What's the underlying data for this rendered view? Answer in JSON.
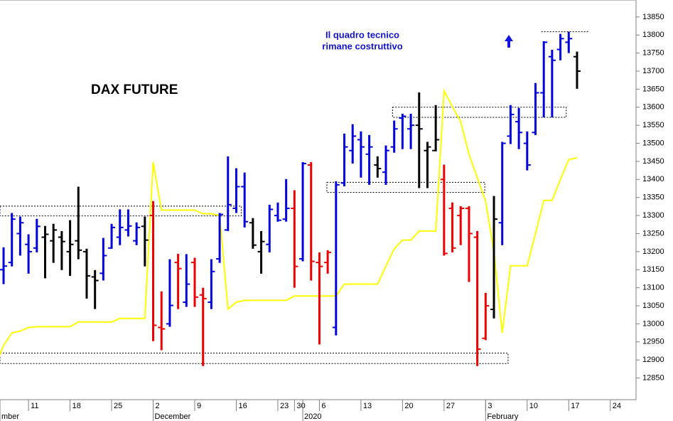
{
  "chart_data": {
    "type": "ohlc",
    "title": "DAX FUTURE",
    "annotations": [
      "Il quadro tecnico",
      "rimane costruttivo"
    ],
    "xlim": [
      1.57,
      78.1
    ],
    "ylim": [
      12790,
      13897
    ],
    "yticks": [
      12850,
      12900,
      12950,
      13000,
      13050,
      13100,
      13150,
      13200,
      13250,
      13300,
      13350,
      13400,
      13450,
      13500,
      13550,
      13600,
      13650,
      13700,
      13750,
      13800,
      13850
    ],
    "xticks": [
      {
        "value": 5,
        "label": "11"
      },
      {
        "value": 10,
        "label": "18"
      },
      {
        "value": 15,
        "label": "25"
      },
      {
        "value": 20,
        "label": "2"
      },
      {
        "value": 25,
        "label": "9"
      },
      {
        "value": 30,
        "label": "16"
      },
      {
        "value": 35,
        "label": "23"
      },
      {
        "value": 37,
        "label": "30"
      },
      {
        "value": 40,
        "label": "6"
      },
      {
        "value": 45,
        "label": "13"
      },
      {
        "value": 50,
        "label": "20"
      },
      {
        "value": 55,
        "label": "27"
      },
      {
        "value": 60,
        "label": "3"
      },
      {
        "value": 65,
        "label": "10"
      },
      {
        "value": 70,
        "label": "17"
      },
      {
        "value": 75,
        "label": "24"
      }
    ],
    "month_ticks": [
      {
        "value": 1.57,
        "label": "mber"
      },
      {
        "value": 20,
        "label": "December"
      },
      {
        "value": 38,
        "label": "2020"
      },
      {
        "value": 60,
        "label": "February"
      }
    ],
    "x": [
      1,
      2,
      3,
      4,
      5,
      6,
      7,
      8,
      9,
      10,
      11,
      12,
      13,
      14,
      15,
      16,
      17,
      18,
      19,
      20,
      21,
      22,
      23,
      24,
      25,
      26,
      27,
      28,
      29,
      30,
      31,
      32,
      33,
      34,
      35,
      36,
      37,
      38,
      39,
      40,
      41,
      42,
      43,
      44,
      45,
      46,
      47,
      48,
      49,
      50,
      51,
      52,
      53,
      54,
      55,
      56,
      57,
      58,
      59,
      60,
      61,
      62,
      63,
      64,
      65,
      66,
      67,
      68,
      69,
      70,
      71
    ],
    "open": [
      null,
      13150,
      13170,
      13250,
      13220,
      13210,
      13240,
      13230,
      13240,
      13200,
      13230,
      13200,
      13130,
      13140,
      13210,
      13240,
      13260,
      13230,
      13270,
      13300,
      12990,
      13000,
      13170,
      13060,
      13170,
      13080,
      13060,
      13180,
      13260,
      13320,
      13380,
      13280,
      13200,
      13220,
      13300,
      13290,
      13320,
      13180,
      13440,
      13170,
      13170,
      12990,
      13390,
      13480,
      13510,
      13470,
      13440,
      13420,
      13490,
      13570,
      13540,
      13550,
      13480,
      13480,
      13400,
      13320,
      13300,
      13320,
      13240,
      12960,
      13040,
      13280,
      13520,
      13560,
      13500,
      13530,
      13640,
      13740,
      13760,
      13780,
      13740
    ],
    "high": [
      null,
      13212,
      13307,
      13297,
      13248,
      13291,
      13271,
      13277,
      13257,
      13287,
      13380,
      13208,
      13149,
      13238,
      13277,
      13317,
      13317,
      13281,
      13297,
      13340,
      13090,
      13179,
      13194,
      13193,
      13183,
      13100,
      13179,
      13307,
      13464,
      13431,
      13419,
      13293,
      13257,
      13330,
      13336,
      13401,
      13370,
      13448,
      13448,
      13198,
      13204,
      13395,
      13527,
      13553,
      13533,
      13523,
      13464,
      13494,
      13563,
      13582,
      13582,
      13641,
      13504,
      13606,
      13441,
      13336,
      13326,
      13326,
      13257,
      13086,
      13354,
      13504,
      13606,
      13598,
      13533,
      13667,
      13783,
      13759,
      13803,
      13809,
      13754
    ],
    "low": [
      null,
      13110,
      13159,
      13189,
      13139,
      13198,
      13126,
      13169,
      13149,
      13133,
      13179,
      13070,
      13041,
      13120,
      13208,
      13218,
      13242,
      13218,
      13159,
      12952,
      12927,
      12992,
      13041,
      13047,
      13047,
      12883,
      13041,
      13169,
      13257,
      13307,
      13267,
      13208,
      13139,
      13198,
      13283,
      13283,
      13100,
      13173,
      13120,
      12943,
      13139,
      12968,
      13381,
      13444,
      13405,
      13385,
      13405,
      13385,
      13474,
      13484,
      13484,
      13376,
      13376,
      13478,
      13189,
      13198,
      13218,
      13116,
      12883,
      12955,
      13015,
      13218,
      13498,
      13484,
      13425,
      13523,
      13572,
      13572,
      13730,
      13750,
      13651
    ],
    "close": [
      null,
      13160,
      13290,
      13280,
      13200,
      13270,
      13248,
      13260,
      13228,
      13220,
      13204,
      13133,
      13120,
      13189,
      13267,
      13267,
      13271,
      13267,
      13232,
      12996,
      12986,
      13051,
      13153,
      13110,
      13074,
      13070,
      13145,
      13303,
      13330,
      13380,
      13283,
      13218,
      13228,
      13317,
      13287,
      13320,
      13159,
      13444,
      13173,
      13159,
      13198,
      13385,
      13490,
      13520,
      13490,
      13490,
      13430,
      13480,
      13540,
      13575,
      13550,
      13540,
      13490,
      13510,
      13195,
      13210,
      13320,
      13250,
      12930,
      13050,
      13290,
      13500,
      13580,
      13530,
      13440,
      13640,
      13780,
      13730,
      13790,
      13790,
      13700
    ],
    "bar_colors": [
      null,
      "#0000dd",
      "#0000dd",
      "#0000dd",
      "#0000dd",
      "#0000dd",
      "#000000",
      "#000000",
      "#000000",
      "#000000",
      "#000000",
      "#000000",
      "#000000",
      "#0000dd",
      "#0000dd",
      "#0000dd",
      "#0000dd",
      "#0000dd",
      "#000000",
      "#ee0000",
      "#ee0000",
      "#0000dd",
      "#ee0000",
      "#0000dd",
      "#ee0000",
      "#ee0000",
      "#0000dd",
      "#0000dd",
      "#0000dd",
      "#0000dd",
      "#0000dd",
      "#000000",
      "#000000",
      "#0000dd",
      "#0000dd",
      "#0000dd",
      "#ee0000",
      "#0000dd",
      "#ee0000",
      "#ee0000",
      "#ee0000",
      "#0000dd",
      "#0000dd",
      "#0000dd",
      "#0000dd",
      "#0000dd",
      "#000000",
      "#0000dd",
      "#0000dd",
      "#0000dd",
      "#0000dd",
      "#000000",
      "#000000",
      "#000000",
      "#ee0000",
      "#ee0000",
      "#ee0000",
      "#ee0000",
      "#ee0000",
      "#ee0000",
      "#000000",
      "#0000dd",
      "#0000dd",
      "#0000dd",
      "#0000dd",
      "#0000dd",
      "#0000dd",
      "#0000dd",
      "#0000dd",
      "#0000dd",
      "#000000"
    ],
    "line": {
      "color": "#ffff00",
      "values": [
        12885,
        12940,
        12975,
        12980,
        12990,
        12992,
        12992,
        12992,
        12992,
        12992,
        13005,
        13005,
        13005,
        13005,
        13005,
        13015,
        13015,
        13015,
        13015,
        13448,
        13315,
        13315,
        13315,
        13315,
        13315,
        13305,
        13305,
        13300,
        13041,
        13060,
        13065,
        13065,
        13065,
        13065,
        13065,
        13065,
        13077,
        13077,
        13077,
        13077,
        13077,
        13077,
        13110,
        13110,
        13110,
        13110,
        13110,
        13160,
        13208,
        13232,
        13232,
        13257,
        13257,
        13257,
        13645,
        13602,
        13560,
        13470,
        13405,
        13340,
        13200,
        12975,
        13161,
        13161,
        13161,
        13250,
        13342,
        13342,
        13400,
        13455,
        13460
      ]
    },
    "zones": [
      {
        "x": [
          1.57,
          30.6
        ],
        "y": [
          13299,
          13326
        ]
      },
      {
        "x": [
          1.57,
          62.7
        ],
        "y": [
          12890,
          12919
        ]
      },
      {
        "x": [
          40.9,
          59.9
        ],
        "y": [
          13364,
          13392
        ]
      },
      {
        "x": [
          48.8,
          69.7
        ],
        "y": [
          13572,
          13600
        ]
      }
    ],
    "level_lines": [
      {
        "x": [
          66.7,
          72.5
        ],
        "y": 13809
      }
    ]
  }
}
